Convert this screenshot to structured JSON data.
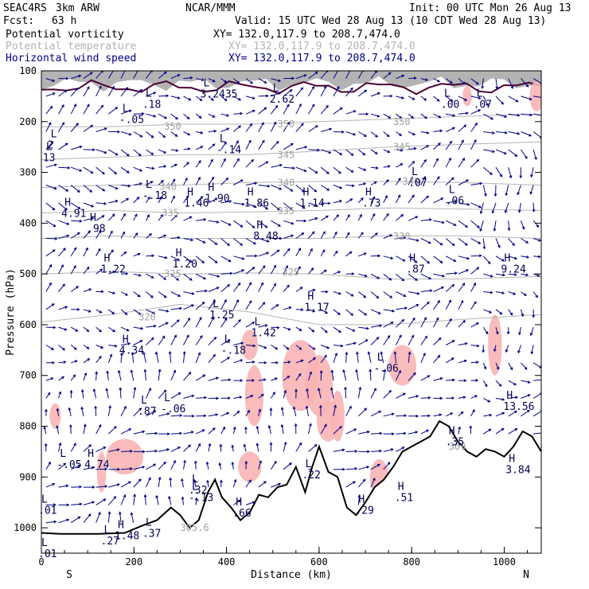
{
  "header": {
    "project": "SEAC4RS",
    "model": "3km ARW",
    "org": "NCAR/MMM",
    "init": "Init: 00 UTC Mon 26 Aug 13",
    "fcst_label": "Fcst:",
    "fcst_value": "63 h",
    "valid": "Valid: 15 UTC Wed 28 Aug 13 (10 CDT Wed 28 Aug 13)"
  },
  "fields": [
    {
      "name": "Potential vorticity",
      "xy": "XY= 132.0,117.9 to 208.7,474.0",
      "color": "#000000"
    },
    {
      "name": "Potential temperature",
      "xy": "XY= 132.0,117.9 to 208.7,474.0",
      "color": "#b4b4b4"
    },
    {
      "name": "Horizontal wind speed",
      "xy": "XY= 132.0,117.9 to 208.7,474.0",
      "color": "#000088"
    }
  ],
  "chart_data": {
    "type": "cross-section",
    "xlabel": "Distance (km)",
    "ylabel": "Pressure (hPa)",
    "xlim": [
      0,
      1080
    ],
    "ylim": [
      1050,
      100
    ],
    "xticks": [
      0,
      200,
      400,
      600,
      800,
      1000
    ],
    "yticks": [
      100,
      200,
      300,
      400,
      500,
      600,
      700,
      800,
      900,
      1000
    ],
    "left_end_label": "S",
    "right_end_label": "N",
    "theta_contours": [
      {
        "value": 350,
        "label_x": 260,
        "p": [
          [
            0,
            210
          ],
          [
            150,
            210
          ],
          [
            300,
            205
          ],
          [
            450,
            205
          ],
          [
            600,
            200
          ],
          [
            750,
            195
          ],
          [
            900,
            190
          ],
          [
            1080,
            185
          ]
        ]
      },
      {
        "value": 345,
        "label_x": 520,
        "p": [
          [
            0,
            275
          ],
          [
            150,
            270
          ],
          [
            300,
            265
          ],
          [
            450,
            265
          ],
          [
            600,
            258
          ],
          [
            750,
            250
          ],
          [
            900,
            245
          ],
          [
            1080,
            240
          ]
        ]
      },
      {
        "value": 340,
        "label_x": 520,
        "p": [
          [
            0,
            330
          ],
          [
            150,
            325
          ],
          [
            300,
            325
          ],
          [
            450,
            320
          ],
          [
            600,
            318
          ],
          [
            750,
            318
          ],
          [
            900,
            320
          ],
          [
            1080,
            325
          ]
        ]
      },
      {
        "value": 335,
        "label_x": 520,
        "p": [
          [
            0,
            380
          ],
          [
            150,
            375
          ],
          [
            300,
            380
          ],
          [
            450,
            378
          ],
          [
            600,
            375
          ],
          [
            750,
            370
          ],
          [
            900,
            372
          ],
          [
            1080,
            375
          ]
        ]
      },
      {
        "value": 330,
        "label_x": 760,
        "p": [
          [
            0,
            430
          ],
          [
            150,
            425
          ],
          [
            300,
            430
          ],
          [
            450,
            430
          ],
          [
            600,
            430
          ],
          [
            750,
            425
          ],
          [
            900,
            425
          ],
          [
            1080,
            430
          ]
        ]
      },
      {
        "value": 325,
        "label_x": 520,
        "p": [
          [
            0,
            500
          ],
          [
            150,
            495
          ],
          [
            300,
            500
          ],
          [
            450,
            498
          ],
          [
            600,
            500
          ],
          [
            750,
            510
          ],
          [
            900,
            510
          ],
          [
            1080,
            505
          ]
        ]
      },
      {
        "value": 320,
        "label_x": 220,
        "p": [
          [
            0,
            595
          ],
          [
            150,
            580
          ],
          [
            300,
            560
          ],
          [
            450,
            575
          ],
          [
            600,
            600
          ],
          [
            750,
            600
          ],
          [
            900,
            590
          ],
          [
            1080,
            580
          ]
        ]
      }
    ],
    "theta_labels": [
      {
        "text": "350",
        "x": 265,
        "p": 210
      },
      {
        "text": "350",
        "x": 510,
        "p": 205
      },
      {
        "text": "350",
        "x": 760,
        "p": 200
      },
      {
        "text": "345",
        "x": 510,
        "p": 265
      },
      {
        "text": "345",
        "x": 760,
        "p": 250
      },
      {
        "text": "340",
        "x": 255,
        "p": 328
      },
      {
        "text": "340",
        "x": 510,
        "p": 320
      },
      {
        "text": "340",
        "x": 780,
        "p": 318
      },
      {
        "text": "335",
        "x": 260,
        "p": 380
      },
      {
        "text": "335",
        "x": 510,
        "p": 376
      },
      {
        "text": "330",
        "x": 760,
        "p": 426
      },
      {
        "text": "325",
        "x": 265,
        "p": 500
      },
      {
        "text": "325",
        "x": 520,
        "p": 497
      },
      {
        "text": "320",
        "x": 210,
        "p": 585
      },
      {
        "text": "309",
        "x": 880,
        "p": 840
      },
      {
        "text": "305.6",
        "x": 300,
        "p": 1000
      }
    ],
    "pv_extrema": [
      {
        "kind": "L",
        "value": ".18",
        "x": 225,
        "p": 160
      },
      {
        "kind": "L",
        "value": "3.2435",
        "x": 350,
        "p": 140
      },
      {
        "kind": "L",
        "value": "2.62",
        "x": 500,
        "p": 150
      },
      {
        "kind": "L",
        "value": ".00",
        "x": 870,
        "p": 160
      },
      {
        "kind": "L",
        "value": ".07",
        "x": 940,
        "p": 160
      },
      {
        "kind": "L",
        "value": "-.05",
        "x": 175,
        "p": 190
      },
      {
        "kind": "L",
        "value": "-.14",
        "x": 385,
        "p": 250
      },
      {
        "kind": "L",
        "value": "2",
        "x": 20,
        "p": 240
      },
      {
        "kind": "L",
        "value": "13",
        "x": 10,
        "p": 265
      },
      {
        "kind": "L",
        "value": "-.18",
        "x": 225,
        "p": 340
      },
      {
        "kind": "H",
        "value": "1.46",
        "x": 315,
        "p": 355
      },
      {
        "kind": "H",
        "value": "1.90",
        "x": 360,
        "p": 345
      },
      {
        "kind": "H",
        "value": "1.86",
        "x": 445,
        "p": 355
      },
      {
        "kind": "H",
        "value": "1.14",
        "x": 565,
        "p": 355
      },
      {
        "kind": "H",
        "value": ".73",
        "x": 700,
        "p": 355
      },
      {
        "kind": "L",
        "value": ".07",
        "x": 800,
        "p": 315
      },
      {
        "kind": "L",
        "value": ".06",
        "x": 880,
        "p": 350
      },
      {
        "kind": "H",
        "value": "4.91",
        "x": 50,
        "p": 375
      },
      {
        "kind": "H",
        "value": ".98",
        "x": 105,
        "p": 405
      },
      {
        "kind": "H",
        "value": "8.48",
        "x": 465,
        "p": 420
      },
      {
        "kind": "H",
        "value": "1.22",
        "x": 135,
        "p": 485
      },
      {
        "kind": "H",
        "value": "1.20",
        "x": 290,
        "p": 475
      },
      {
        "kind": "H",
        "value": ".87",
        "x": 795,
        "p": 485
      },
      {
        "kind": "H",
        "value": "9.24",
        "x": 1000,
        "p": 485
      },
      {
        "kind": "L",
        "value": "1.25",
        "x": 370,
        "p": 575
      },
      {
        "kind": "L",
        "value": "1.42",
        "x": 460,
        "p": 610
      },
      {
        "kind": "H",
        "value": "1.17",
        "x": 575,
        "p": 560
      },
      {
        "kind": "H",
        "value": "4.34",
        "x": 175,
        "p": 645
      },
      {
        "kind": "L",
        "value": "-.18",
        "x": 395,
        "p": 645
      },
      {
        "kind": "L",
        "value": "-.06",
        "x": 725,
        "p": 680
      },
      {
        "kind": "L",
        "value": ".87",
        "x": 215,
        "p": 765
      },
      {
        "kind": "L",
        "value": "-.06",
        "x": 265,
        "p": 760
      },
      {
        "kind": "H",
        "value": "13.56",
        "x": 1005,
        "p": 755
      },
      {
        "kind": "L",
        "value": "-.05",
        "x": 40,
        "p": 870
      },
      {
        "kind": "H",
        "value": "4.74",
        "x": 100,
        "p": 870
      },
      {
        "kind": "H",
        "value": ".35",
        "x": 880,
        "p": 825
      },
      {
        "kind": "H",
        "value": "3.84",
        "x": 1010,
        "p": 880
      },
      {
        "kind": "L",
        "value": ".22",
        "x": 570,
        "p": 890
      },
      {
        "kind": "L",
        "value": ".32",
        "x": 325,
        "p": 920
      },
      {
        "kind": "L",
        "value": "-.13",
        "x": 325,
        "p": 935
      },
      {
        "kind": "H",
        "value": ".66",
        "x": 420,
        "p": 965
      },
      {
        "kind": "H",
        "value": ".29",
        "x": 685,
        "p": 960
      },
      {
        "kind": "H",
        "value": ".51",
        "x": 770,
        "p": 935
      },
      {
        "kind": "L",
        "value": ".27",
        "x": 135,
        "p": 1020
      },
      {
        "kind": "H",
        "value": "1.48",
        "x": 165,
        "p": 1010
      },
      {
        "kind": "L",
        "value": ".37",
        "x": 225,
        "p": 1005
      },
      {
        "kind": "L",
        "value": ".01",
        "x": 0,
        "p": 960
      },
      {
        "kind": "L",
        "value": ".01",
        "x": 0,
        "p": 1045
      }
    ],
    "terrain_pressure": [
      [
        0,
        1010
      ],
      [
        40,
        1012
      ],
      [
        120,
        1012
      ],
      [
        180,
        1010
      ],
      [
        220,
        995
      ],
      [
        250,
        985
      ],
      [
        280,
        960
      ],
      [
        300,
        975
      ],
      [
        320,
        1000
      ],
      [
        340,
        985
      ],
      [
        360,
        930
      ],
      [
        375,
        905
      ],
      [
        390,
        940
      ],
      [
        410,
        960
      ],
      [
        430,
        985
      ],
      [
        450,
        970
      ],
      [
        470,
        935
      ],
      [
        490,
        940
      ],
      [
        510,
        920
      ],
      [
        530,
        915
      ],
      [
        550,
        880
      ],
      [
        570,
        930
      ],
      [
        585,
        880
      ],
      [
        600,
        840
      ],
      [
        620,
        890
      ],
      [
        640,
        900
      ],
      [
        660,
        960
      ],
      [
        680,
        975
      ],
      [
        700,
        950
      ],
      [
        720,
        920
      ],
      [
        740,
        905
      ],
      [
        760,
        880
      ],
      [
        780,
        850
      ],
      [
        800,
        840
      ],
      [
        820,
        830
      ],
      [
        840,
        820
      ],
      [
        860,
        790
      ],
      [
        880,
        800
      ],
      [
        900,
        830
      ],
      [
        920,
        850
      ],
      [
        940,
        860
      ],
      [
        960,
        845
      ],
      [
        980,
        850
      ],
      [
        1000,
        860
      ],
      [
        1020,
        840
      ],
      [
        1040,
        810
      ],
      [
        1060,
        820
      ],
      [
        1080,
        850
      ]
    ],
    "wind_arrow_spacing_km": 27,
    "wind_arrow_spacing_hPa": 35
  }
}
